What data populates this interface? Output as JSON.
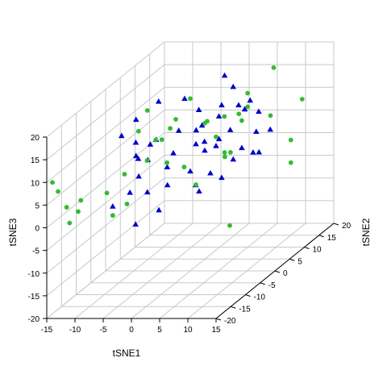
{
  "chart_data": {
    "type": "scatter",
    "projection": "3d",
    "xlabel": "tSNE1",
    "ylabel": "tSNE2",
    "zlabel": "tSNE3",
    "xlim": [
      -15,
      15
    ],
    "ylim": [
      -20,
      20
    ],
    "zlim": [
      -20,
      20
    ],
    "x_ticks": [
      "-15",
      "-10",
      "-5",
      "0",
      "5",
      "10",
      "15"
    ],
    "y_ticks": [
      "-20",
      "-15",
      "-10",
      "-5",
      "0",
      "5",
      "10",
      "15",
      "20"
    ],
    "z_ticks": [
      "-20",
      "-15",
      "-10",
      "-5",
      "0",
      "5",
      "10",
      "15",
      "20"
    ],
    "grid": true,
    "series": [
      {
        "marker": "triangle",
        "color": "#0000cc",
        "points": [
          [
            4,
            4,
            21
          ],
          [
            -1,
            0,
            18
          ],
          [
            -3,
            -5,
            20
          ],
          [
            -8,
            -8,
            14
          ],
          [
            -6,
            -7,
            12
          ],
          [
            -7,
            -5,
            16
          ],
          [
            -5,
            -2,
            10
          ],
          [
            -5,
            -4,
            10
          ],
          [
            -1,
            -2,
            12
          ],
          [
            1,
            1,
            15
          ],
          [
            4,
            3,
            15
          ],
          [
            3,
            4,
            12
          ],
          [
            5,
            5,
            18
          ],
          [
            8,
            5,
            15
          ],
          [
            6,
            7,
            12
          ],
          [
            9,
            6,
            12
          ],
          [
            10,
            8,
            7
          ],
          [
            1,
            0,
            8
          ],
          [
            0,
            2,
            10
          ],
          [
            5,
            4,
            9
          ],
          [
            3,
            3,
            6
          ],
          [
            2,
            1,
            8
          ],
          [
            -3,
            0,
            6
          ],
          [
            -6,
            -6,
            4
          ],
          [
            -2,
            -4,
            5
          ],
          [
            -6,
            -9,
            2
          ],
          [
            -8,
            -11,
            0
          ],
          [
            -5,
            -5,
            0
          ],
          [
            -3,
            -2,
            0
          ],
          [
            0,
            0,
            2
          ],
          [
            2,
            3,
            0
          ],
          [
            5,
            5,
            2
          ],
          [
            6,
            6,
            4
          ],
          [
            8,
            6,
            3
          ],
          [
            -4,
            -3,
            -5
          ],
          [
            -5,
            -9,
            -5
          ],
          [
            4,
            3,
            -1
          ],
          [
            0,
            3,
            -4
          ],
          [
            8,
            8,
            2
          ],
          [
            7,
            3,
            15
          ],
          [
            2,
            -2,
            0
          ],
          [
            -7,
            -5,
            8
          ],
          [
            1,
            3,
            5
          ],
          [
            -7,
            -1,
            5
          ],
          [
            -4,
            -10,
            10
          ],
          [
            3,
            4,
            7
          ],
          [
            7,
            9,
            6
          ],
          [
            0,
            4,
            10
          ]
        ]
      },
      {
        "marker": "circle",
        "color": "#33bb33",
        "points": [
          [
            8,
            13,
            18
          ],
          [
            12,
            15,
            10
          ],
          [
            10,
            15,
            1
          ],
          [
            10,
            15,
            -4
          ],
          [
            7,
            0,
            -10
          ],
          [
            -14,
            -20,
            10
          ],
          [
            -13,
            -20,
            8
          ],
          [
            -12,
            -18,
            0
          ],
          [
            -11,
            -17,
            2
          ],
          [
            -12,
            -19,
            4
          ],
          [
            -10,
            -18,
            5
          ],
          [
            -8,
            -13,
            4
          ],
          [
            -6,
            -10,
            0
          ],
          [
            -8,
            -11,
            -2
          ],
          [
            -4,
            -7,
            8
          ],
          [
            -3,
            -6,
            12
          ],
          [
            -2,
            -3,
            13
          ],
          [
            0,
            0,
            18
          ],
          [
            3,
            0,
            13
          ],
          [
            -5,
            -8,
            15
          ],
          [
            -5,
            -5,
            18
          ],
          [
            -1,
            -3,
            15
          ],
          [
            5,
            2,
            13
          ],
          [
            1,
            -4,
            5
          ],
          [
            1,
            0,
            -1
          ],
          [
            3,
            6,
            2
          ],
          [
            4,
            6,
            3
          ],
          [
            3,
            3,
            8
          ],
          [
            6,
            6,
            10
          ],
          [
            6,
            5,
            12
          ],
          [
            6,
            8,
            12
          ],
          [
            9,
            10,
            9
          ],
          [
            4,
            4,
            4
          ],
          [
            6,
            8,
            15
          ],
          [
            -1,
            -6,
            7
          ],
          [
            -4,
            -2,
            10
          ],
          [
            -8,
            -7,
            5
          ],
          [
            1,
            3,
            11
          ]
        ]
      }
    ]
  }
}
